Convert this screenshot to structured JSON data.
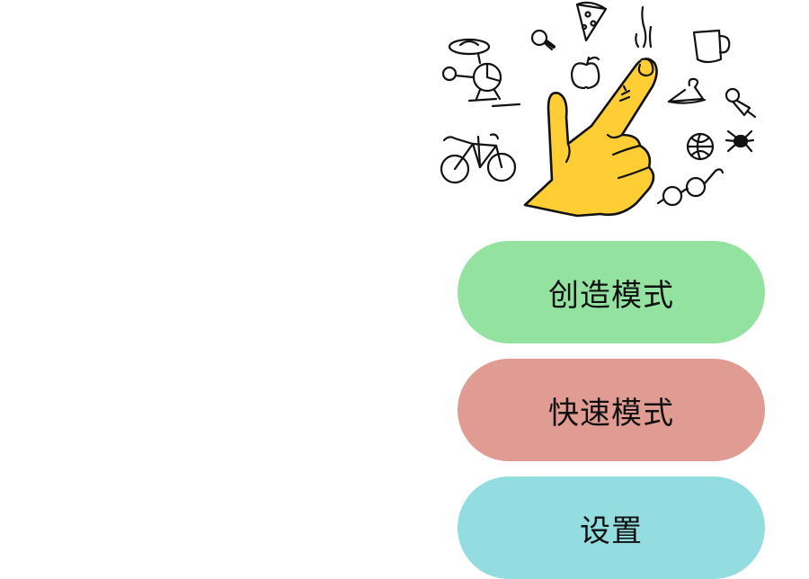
{
  "hero": {
    "illustration": "hand-pointing-with-doodles",
    "doodles": [
      "helicopter-icon",
      "lightbulb-icon",
      "pizza-icon",
      "steam-icon",
      "coffee-mug-icon",
      "apple-icon",
      "hanger-icon",
      "pushpin-icon",
      "bicycle-icon",
      "basketball-icon",
      "spider-icon",
      "glasses-icon"
    ]
  },
  "menu": {
    "items": [
      {
        "label": "创造模式",
        "color": "#93E29F"
      },
      {
        "label": "快速模式",
        "color": "#E09C93"
      },
      {
        "label": "设置",
        "color": "#93DCE0"
      }
    ]
  },
  "colors": {
    "hand": "#FFCE34",
    "outline": "#111111",
    "background": "#FFFFFF"
  }
}
